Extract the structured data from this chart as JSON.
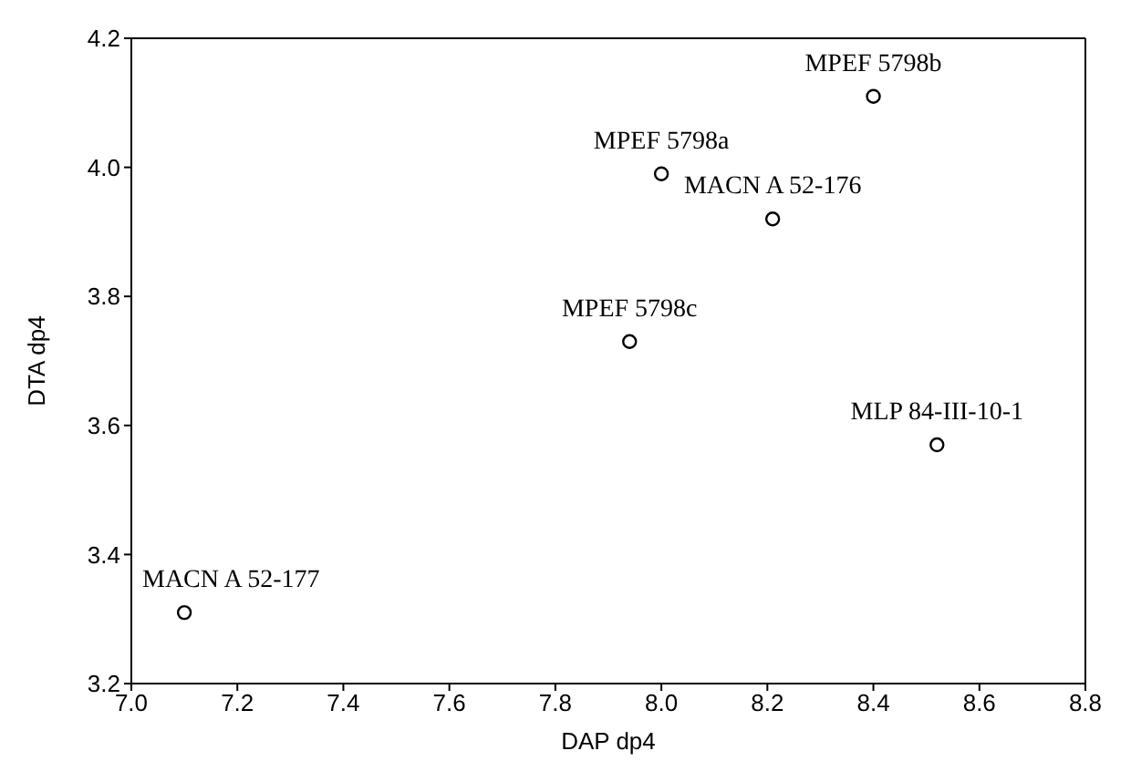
{
  "chart_data": {
    "type": "scatter",
    "xlabel": "DAP dp4",
    "ylabel": "DTA  dp4",
    "x": [
      7.1,
      7.94,
      8.0,
      8.21,
      8.4,
      8.52
    ],
    "series": [
      {
        "color": "#000000",
        "values": [
          3.31,
          3.73,
          3.99,
          3.92,
          4.11,
          3.57
        ]
      }
    ],
    "marker": "circle",
    "xlim": [
      7.0,
      8.8
    ],
    "xticks": [
      {
        "value": 7.0,
        "label": "7.0"
      },
      7.2,
      7.4,
      7.6,
      7.8,
      {
        "value": 8.0,
        "label": "8.0"
      },
      8.2,
      8.4,
      8.6,
      8.8
    ],
    "ylim": [
      3.2,
      4.2
    ],
    "yticks": [
      3.2,
      3.4,
      3.6,
      3.8,
      {
        "value": 4.0,
        "label": "4.0"
      },
      4.2
    ],
    "grid": false,
    "legend": false,
    "annotations": [
      {
        "text": "MACN A 52-177",
        "x": 7.1,
        "y": 3.31
      },
      {
        "text": "MPEF 5798c",
        "x": 7.94,
        "y": 3.73
      },
      {
        "text": "MPEF 5798a",
        "x": 8.0,
        "y": 3.99
      },
      {
        "text": "MACN A 52-176",
        "x": 8.21,
        "y": 3.92
      },
      {
        "text": "MPEF 5798b",
        "x": 8.4,
        "y": 4.11
      },
      {
        "text": "MLP 84-III-10-1",
        "x": 8.52,
        "y": 3.57
      }
    ]
  }
}
